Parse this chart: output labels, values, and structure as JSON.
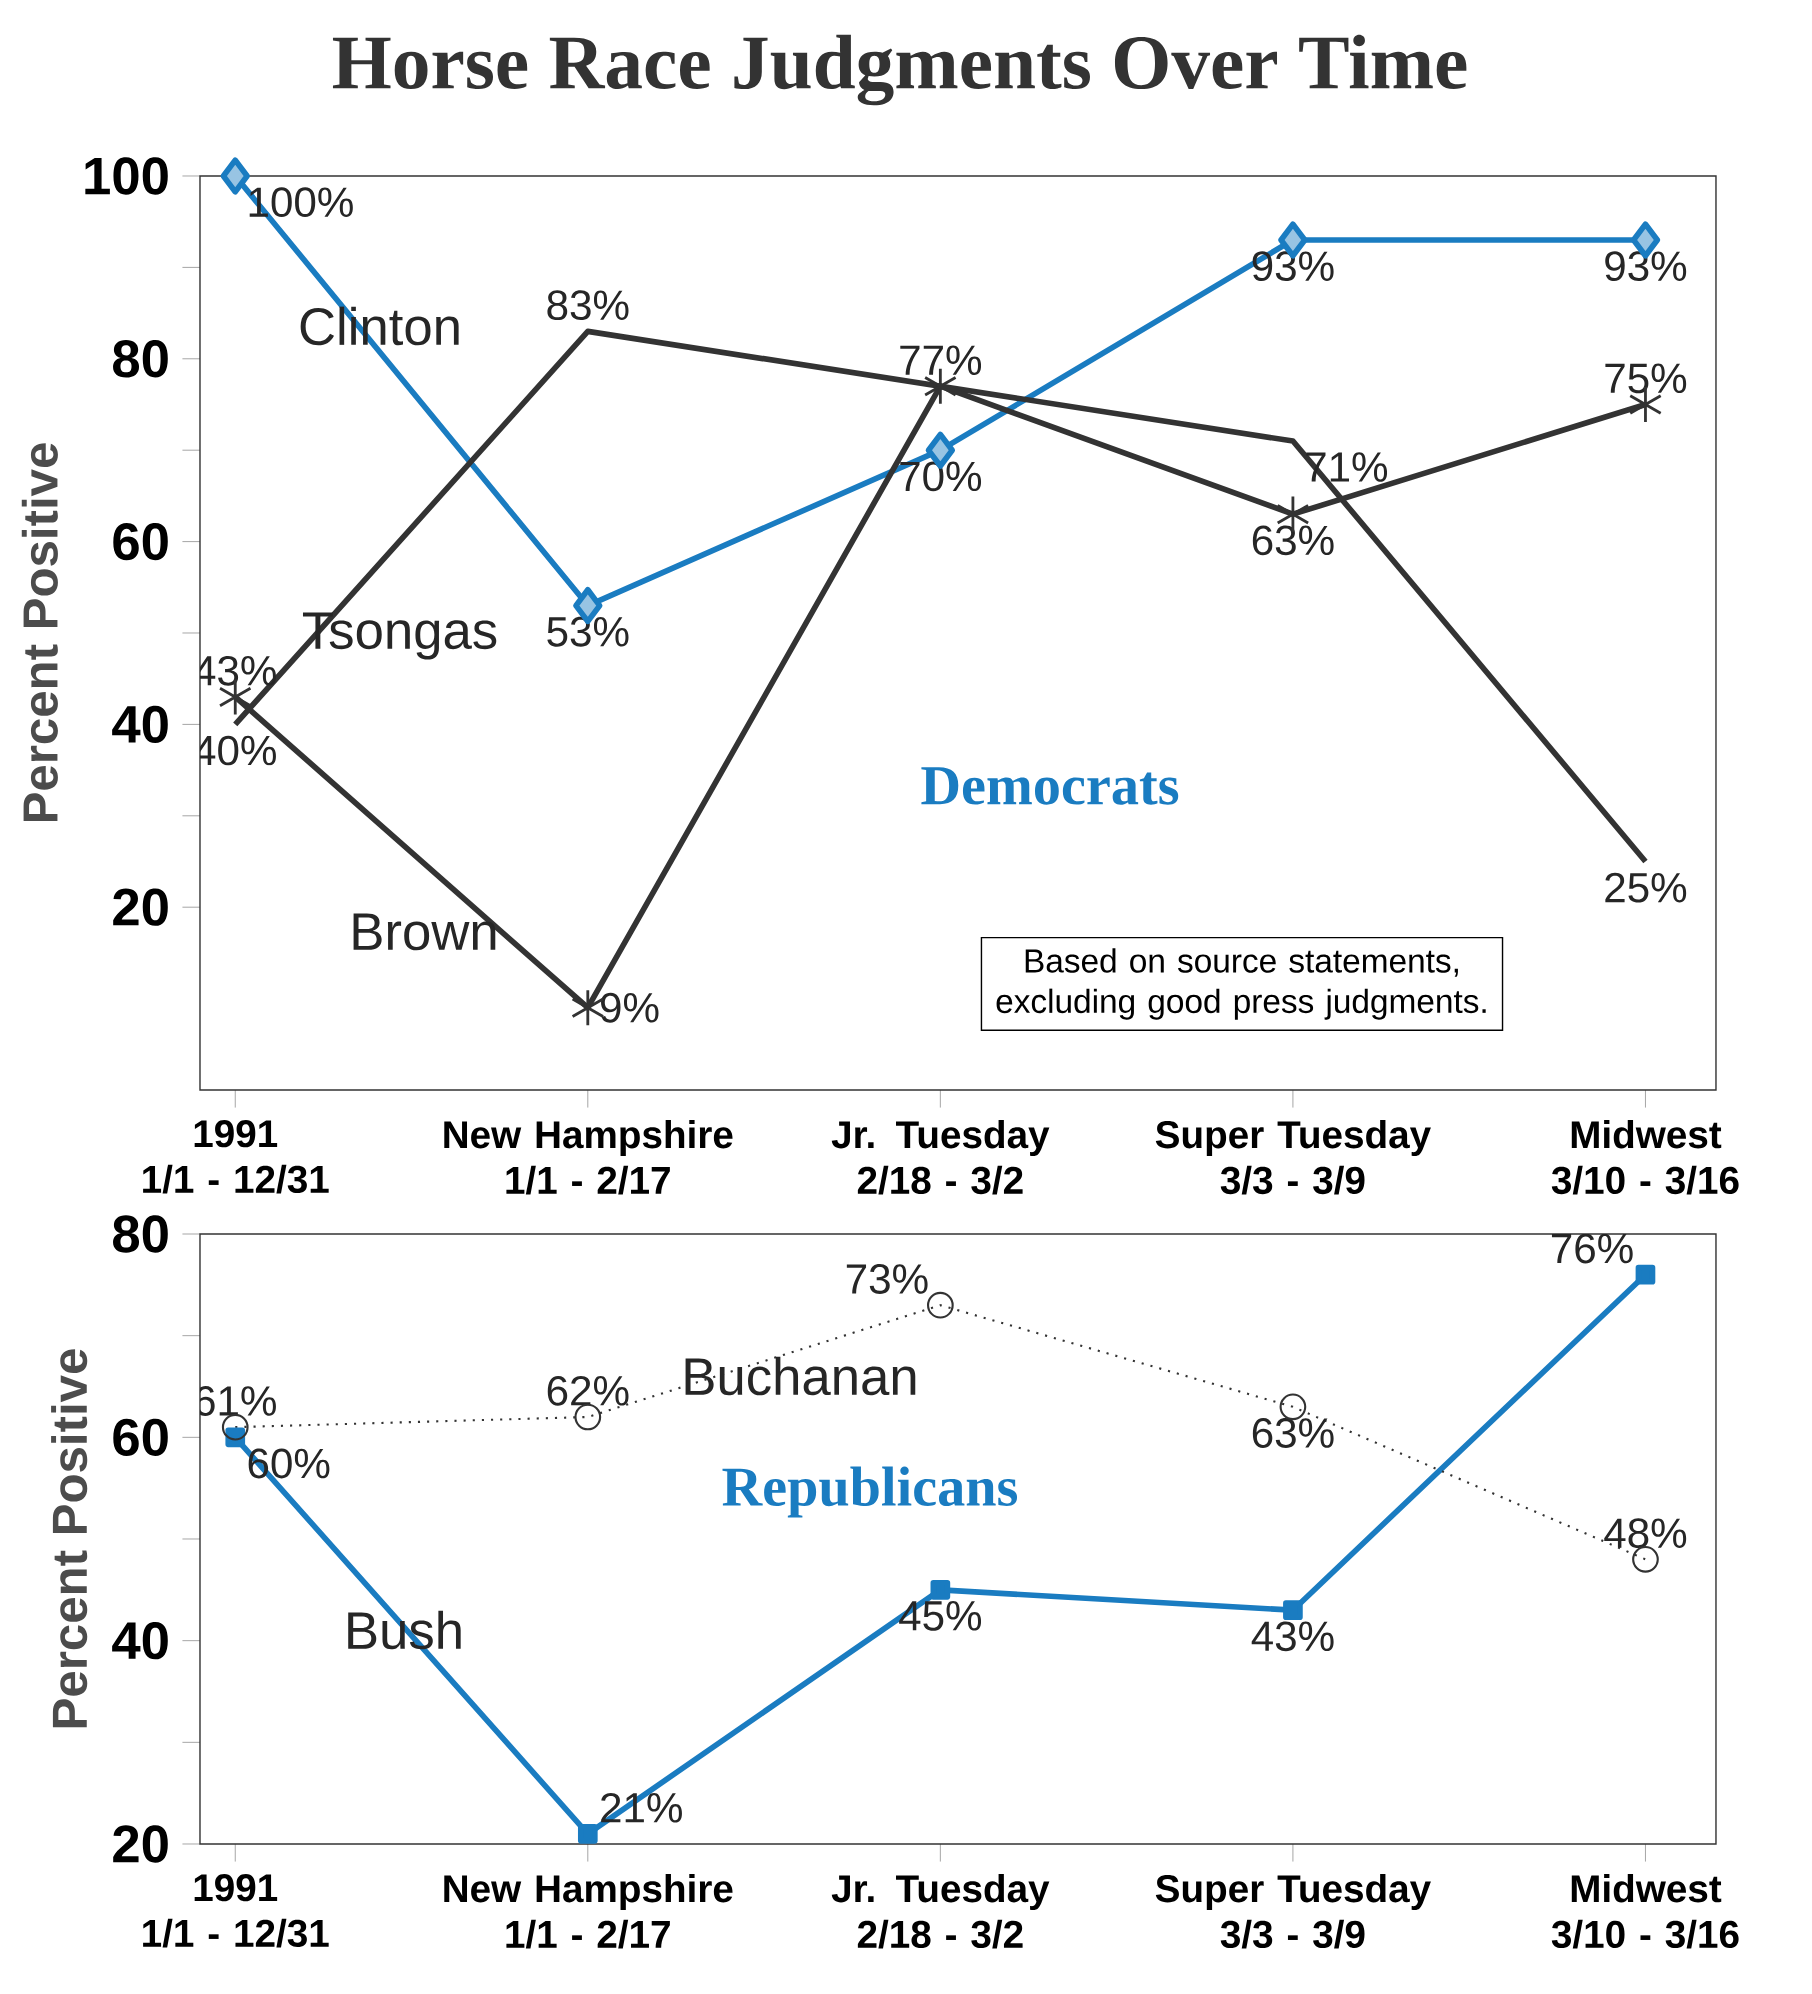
{
  "chart_data": [
    {
      "type": "line",
      "title": "Horse Race Judgments Over Time",
      "ylabel": "Percent Positive",
      "categories": [
        "1991\n1/1 - 12/31",
        "New Hampshire\n1/1 - 2/17",
        "Jr. Tuesday\n2/18 - 3/2",
        "Super Tuesday\n3/3 - 3/9",
        "Midwest\n3/10 - 3/16"
      ],
      "ylim": [
        0,
        100
      ],
      "yticks": [
        20,
        {
          "value": 30,
          "label": null
        },
        40,
        {
          "value": 50,
          "label": null
        },
        60,
        {
          "value": 70,
          "label": null
        },
        80,
        {
          "value": 90,
          "label": null
        },
        100
      ],
      "grid": false,
      "annotations": [
        "Democrats",
        "Based on source statements, excluding good press judgments."
      ],
      "series": [
        {
          "name": "Clinton",
          "color": "#1a7cc1",
          "marker": "diamond",
          "line_style": "solid",
          "values": [
            100,
            53,
            70,
            93,
            93
          ],
          "value_labels": [
            "100%",
            "53%",
            "70%",
            "93%",
            "93%"
          ]
        },
        {
          "name": "Tsongas",
          "color": "#333333",
          "marker": "none",
          "line_style": "solid",
          "values": [
            40,
            83,
            77,
            71,
            25
          ],
          "value_labels": [
            "40%",
            "83%",
            null,
            "71%",
            "25%"
          ]
        },
        {
          "name": "Brown",
          "color": "#333333",
          "marker": "cross",
          "line_style": "solid",
          "values": [
            43,
            9,
            77,
            63,
            75
          ],
          "value_labels": [
            "43%",
            "9%",
            "77%",
            "63%",
            "75%"
          ]
        }
      ]
    },
    {
      "type": "line",
      "ylabel": "Percent Positive",
      "categories": [
        "1991\n1/1 - 12/31",
        "New Hampshire\n1/1 - 2/17",
        "Jr. Tuesday\n2/18 - 3/2",
        "Super Tuesday\n3/3 - 3/9",
        "Midwest\n3/10 - 3/16"
      ],
      "ylim": [
        20,
        80
      ],
      "yticks": [
        20,
        {
          "value": 30,
          "label": null
        },
        40,
        {
          "value": 50,
          "label": null
        },
        60,
        {
          "value": 70,
          "label": null
        },
        80
      ],
      "grid": false,
      "annotations": [
        "Republicans"
      ],
      "series": [
        {
          "name": "Bush",
          "color": "#1a7cc1",
          "marker": "square",
          "line_style": "solid",
          "values": [
            60,
            21,
            45,
            43,
            76
          ],
          "value_labels": [
            "60%",
            "21%",
            "45%",
            "43%",
            "76%"
          ]
        },
        {
          "name": "Buchanan",
          "color": "#333333",
          "marker": "circle",
          "line_style": "dotted",
          "values": [
            61,
            62,
            73,
            63,
            48
          ],
          "value_labels": [
            "61%",
            "62%",
            "73%",
            "63%",
            "48%"
          ]
        }
      ]
    }
  ]
}
